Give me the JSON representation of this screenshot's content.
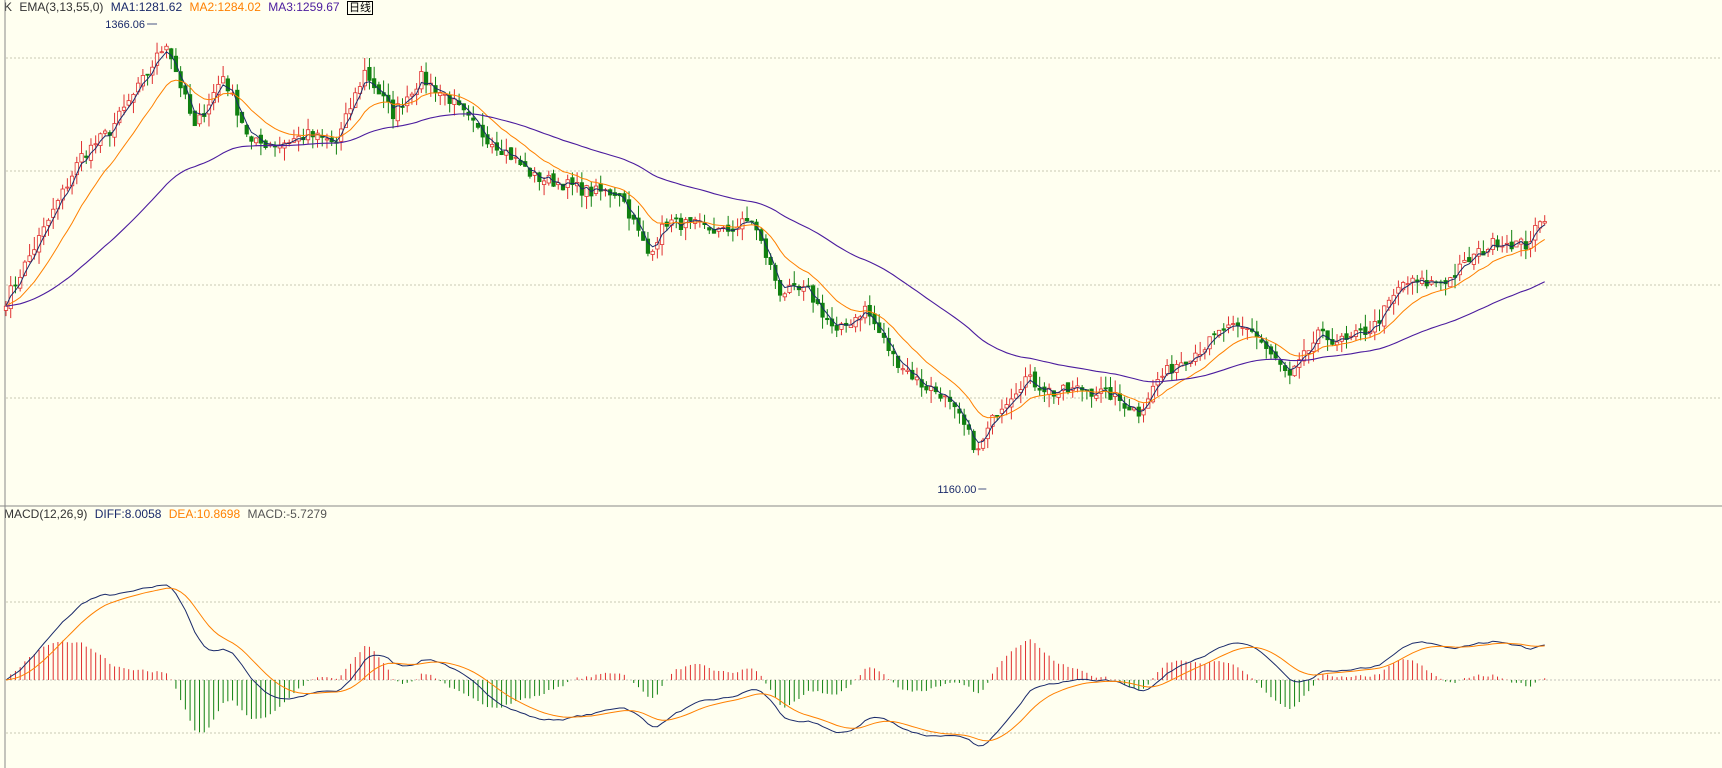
{
  "header_k": {
    "k_label": "K",
    "ema_label": "EMA(3,13,55,0)",
    "ma1": "MA1:1281.62",
    "ma2": "MA2:1284.02",
    "ma3": "MA3:1259.67",
    "period": "日线"
  },
  "header_macd": {
    "macd_label": "MACD(12,26,9)",
    "diff": "DIFF:8.0058",
    "dea": "DEA:10.8698",
    "macd": "MACD:-5.7279"
  },
  "colors": {
    "background": "#fffff0",
    "up": "#e03030",
    "down": "#108010",
    "ma1": "#1a2a6a",
    "ma2": "#ff8000",
    "ma3": "#4b1c9e",
    "grid": "#b8b8a0"
  },
  "chart_data": [
    {
      "type": "candlestick",
      "title": "K",
      "series_names": [
        "MA1",
        "MA2",
        "MA3"
      ],
      "ylim": [
        1145,
        1380
      ],
      "high_label": "1366.06",
      "low_label": "1160.00",
      "anchors": [
        [
          0,
          1242
        ],
        [
          8,
          1275
        ],
        [
          16,
          1310
        ],
        [
          22,
          1322
        ],
        [
          28,
          1342
        ],
        [
          34,
          1364
        ],
        [
          40,
          1323
        ],
        [
          46,
          1348
        ],
        [
          52,
          1316
        ],
        [
          58,
          1316
        ],
        [
          64,
          1320
        ],
        [
          70,
          1316
        ],
        [
          76,
          1350
        ],
        [
          82,
          1330
        ],
        [
          88,
          1347
        ],
        [
          94,
          1337
        ],
        [
          100,
          1322
        ],
        [
          106,
          1312
        ],
        [
          112,
          1300
        ],
        [
          118,
          1297
        ],
        [
          124,
          1293
        ],
        [
          130,
          1293
        ],
        [
          136,
          1264
        ],
        [
          140,
          1279
        ],
        [
          146,
          1277
        ],
        [
          152,
          1274
        ],
        [
          158,
          1280
        ],
        [
          164,
          1246
        ],
        [
          170,
          1246
        ],
        [
          176,
          1226
        ],
        [
          182,
          1238
        ],
        [
          188,
          1215
        ],
        [
          194,
          1202
        ],
        [
          198,
          1198
        ],
        [
          202,
          1186
        ],
        [
          206,
          1170
        ],
        [
          210,
          1190
        ],
        [
          216,
          1205
        ],
        [
          222,
          1198
        ],
        [
          228,
          1200
        ],
        [
          234,
          1197
        ],
        [
          240,
          1189
        ],
        [
          244,
          1204
        ],
        [
          248,
          1212
        ],
        [
          254,
          1220
        ],
        [
          258,
          1228
        ],
        [
          264,
          1228
        ],
        [
          268,
          1216
        ],
        [
          272,
          1205
        ],
        [
          278,
          1225
        ],
        [
          284,
          1222
        ],
        [
          290,
          1230
        ],
        [
          296,
          1250
        ],
        [
          302,
          1250
        ],
        [
          306,
          1252
        ],
        [
          310,
          1261
        ],
        [
          316,
          1270
        ],
        [
          322,
          1268
        ],
        [
          326,
          1281
        ]
      ]
    },
    {
      "type": "macd",
      "title": "MACD(12,26,9)",
      "series_names": [
        "DIFF",
        "DEA",
        "MACD"
      ]
    }
  ]
}
